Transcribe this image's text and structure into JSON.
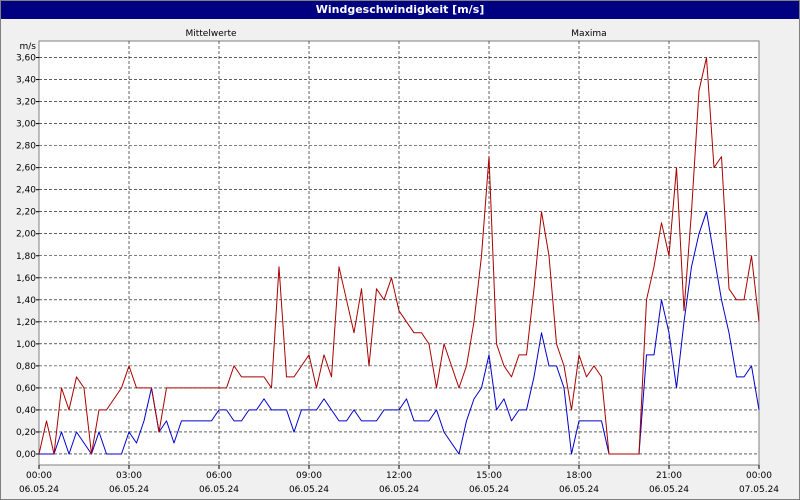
{
  "window": {
    "title": "Windgeschwindigkeit [m/s]"
  },
  "colors": {
    "mean": "#0000cc",
    "max": "#aa0000",
    "grid": "#000000",
    "background": "#ffffff"
  },
  "chart_data": {
    "type": "line",
    "title": "Windgeschwindigkeit [m/s]",
    "ylabel": "m/s",
    "ylim": [
      -0.1,
      3.75
    ],
    "xlim_hours": [
      0,
      24
    ],
    "grid": true,
    "legend": [
      {
        "name": "Mittelwerte",
        "position": "top-left"
      },
      {
        "name": "Maxima",
        "position": "top-right"
      }
    ],
    "y_ticks": [
      "0,00",
      "0,20",
      "0,40",
      "0,60",
      "0,80",
      "1,00",
      "1,20",
      "1,40",
      "1,60",
      "1,80",
      "2,00",
      "2,20",
      "2,40",
      "2,60",
      "2,80",
      "3,00",
      "3,20",
      "3,40",
      "3,60"
    ],
    "x_ticks": [
      {
        "time": "00:00",
        "date": "06.05.24"
      },
      {
        "time": "03:00",
        "date": "06.05.24"
      },
      {
        "time": "06:00",
        "date": "06.05.24"
      },
      {
        "time": "09:00",
        "date": "06.05.24"
      },
      {
        "time": "12:00",
        "date": "06.05.24"
      },
      {
        "time": "15:00",
        "date": "06.05.24"
      },
      {
        "time": "18:00",
        "date": "06.05.24"
      },
      {
        "time": "21:00",
        "date": "06.05.24"
      },
      {
        "time": "00:00",
        "date": "07.05.24"
      }
    ],
    "series": [
      {
        "name": "Mittelwerte",
        "color": "#0000cc",
        "points": [
          [
            0,
            0
          ],
          [
            0.25,
            0
          ],
          [
            0.5,
            0
          ],
          [
            0.75,
            0.2
          ],
          [
            1,
            0
          ],
          [
            1.25,
            0.2
          ],
          [
            1.5,
            0.1
          ],
          [
            1.75,
            0
          ],
          [
            2,
            0.2
          ],
          [
            2.25,
            0
          ],
          [
            2.5,
            0
          ],
          [
            2.75,
            0
          ],
          [
            3,
            0.2
          ],
          [
            3.25,
            0.1
          ],
          [
            3.5,
            0.3
          ],
          [
            3.75,
            0.6
          ],
          [
            4,
            0.2
          ],
          [
            4.25,
            0.3
          ],
          [
            4.5,
            0.1
          ],
          [
            4.75,
            0.3
          ],
          [
            5,
            0.3
          ],
          [
            5.25,
            0.3
          ],
          [
            5.5,
            0.3
          ],
          [
            5.75,
            0.3
          ],
          [
            6,
            0.4
          ],
          [
            6.25,
            0.4
          ],
          [
            6.5,
            0.3
          ],
          [
            6.75,
            0.3
          ],
          [
            7,
            0.4
          ],
          [
            7.25,
            0.4
          ],
          [
            7.5,
            0.5
          ],
          [
            7.75,
            0.4
          ],
          [
            8,
            0.4
          ],
          [
            8.25,
            0.4
          ],
          [
            8.5,
            0.2
          ],
          [
            8.75,
            0.4
          ],
          [
            9,
            0.4
          ],
          [
            9.25,
            0.4
          ],
          [
            9.5,
            0.5
          ],
          [
            9.75,
            0.4
          ],
          [
            10,
            0.3
          ],
          [
            10.25,
            0.3
          ],
          [
            10.5,
            0.4
          ],
          [
            10.75,
            0.3
          ],
          [
            11,
            0.3
          ],
          [
            11.25,
            0.3
          ],
          [
            11.5,
            0.4
          ],
          [
            11.75,
            0.4
          ],
          [
            12,
            0.4
          ],
          [
            12.25,
            0.5
          ],
          [
            12.5,
            0.3
          ],
          [
            12.75,
            0.3
          ],
          [
            13,
            0.3
          ],
          [
            13.25,
            0.4
          ],
          [
            13.5,
            0.2
          ],
          [
            13.75,
            0.1
          ],
          [
            14,
            0
          ],
          [
            14.25,
            0.3
          ],
          [
            14.5,
            0.5
          ],
          [
            14.75,
            0.6
          ],
          [
            15,
            0.9
          ],
          [
            15.25,
            0.4
          ],
          [
            15.5,
            0.5
          ],
          [
            15.75,
            0.3
          ],
          [
            16,
            0.4
          ],
          [
            16.25,
            0.4
          ],
          [
            16.5,
            0.7
          ],
          [
            16.75,
            1.1
          ],
          [
            17,
            0.8
          ],
          [
            17.25,
            0.8
          ],
          [
            17.5,
            0.6
          ],
          [
            17.75,
            0
          ],
          [
            18,
            0.3
          ],
          [
            18.25,
            0.3
          ],
          [
            18.5,
            0.3
          ],
          [
            18.75,
            0.3
          ],
          [
            19,
            0
          ],
          [
            19.25,
            0
          ],
          [
            19.5,
            0
          ],
          [
            19.75,
            0
          ],
          [
            20,
            0
          ],
          [
            20.25,
            0.9
          ],
          [
            20.5,
            0.9
          ],
          [
            20.75,
            1.4
          ],
          [
            21,
            1.1
          ],
          [
            21.25,
            0.6
          ],
          [
            21.5,
            1.2
          ],
          [
            21.75,
            1.7
          ],
          [
            22,
            2
          ],
          [
            22.25,
            2.2
          ],
          [
            22.5,
            1.8
          ],
          [
            22.75,
            1.4
          ],
          [
            23,
            1.1
          ],
          [
            23.25,
            0.7
          ],
          [
            23.5,
            0.7
          ],
          [
            23.75,
            0.8
          ],
          [
            24,
            0.4
          ]
        ]
      },
      {
        "name": "Maxima",
        "color": "#aa0000",
        "points": [
          [
            0,
            0
          ],
          [
            0.25,
            0.3
          ],
          [
            0.5,
            0
          ],
          [
            0.75,
            0.6
          ],
          [
            1,
            0.4
          ],
          [
            1.25,
            0.7
          ],
          [
            1.5,
            0.6
          ],
          [
            1.75,
            0
          ],
          [
            2,
            0.4
          ],
          [
            2.25,
            0.4
          ],
          [
            2.5,
            0.5
          ],
          [
            2.75,
            0.6
          ],
          [
            3,
            0.8
          ],
          [
            3.25,
            0.6
          ],
          [
            3.5,
            0.6
          ],
          [
            3.75,
            0.6
          ],
          [
            4,
            0.2
          ],
          [
            4.25,
            0.6
          ],
          [
            4.5,
            0.6
          ],
          [
            4.75,
            0.6
          ],
          [
            5,
            0.6
          ],
          [
            5.25,
            0.6
          ],
          [
            5.5,
            0.6
          ],
          [
            5.75,
            0.6
          ],
          [
            6,
            0.6
          ],
          [
            6.25,
            0.6
          ],
          [
            6.5,
            0.8
          ],
          [
            6.75,
            0.7
          ],
          [
            7,
            0.7
          ],
          [
            7.25,
            0.7
          ],
          [
            7.5,
            0.7
          ],
          [
            7.75,
            0.6
          ],
          [
            8,
            1.7
          ],
          [
            8.25,
            0.7
          ],
          [
            8.5,
            0.7
          ],
          [
            8.75,
            0.8
          ],
          [
            9,
            0.9
          ],
          [
            9.25,
            0.6
          ],
          [
            9.5,
            0.9
          ],
          [
            9.75,
            0.7
          ],
          [
            10,
            1.7
          ],
          [
            10.25,
            1.4
          ],
          [
            10.5,
            1.1
          ],
          [
            10.75,
            1.5
          ],
          [
            11,
            0.8
          ],
          [
            11.25,
            1.5
          ],
          [
            11.5,
            1.4
          ],
          [
            11.75,
            1.6
          ],
          [
            12,
            1.3
          ],
          [
            12.25,
            1.2
          ],
          [
            12.5,
            1.1
          ],
          [
            12.75,
            1.1
          ],
          [
            13,
            1.0
          ],
          [
            13.25,
            0.6
          ],
          [
            13.5,
            1.0
          ],
          [
            13.75,
            0.8
          ],
          [
            14,
            0.6
          ],
          [
            14.25,
            0.8
          ],
          [
            14.5,
            1.2
          ],
          [
            14.75,
            1.8
          ],
          [
            15,
            2.7
          ],
          [
            15.25,
            1.0
          ],
          [
            15.5,
            0.8
          ],
          [
            15.75,
            0.7
          ],
          [
            16,
            0.9
          ],
          [
            16.25,
            0.9
          ],
          [
            16.5,
            1.5
          ],
          [
            16.75,
            2.2
          ],
          [
            17,
            1.8
          ],
          [
            17.25,
            1.0
          ],
          [
            17.5,
            0.8
          ],
          [
            17.75,
            0.4
          ],
          [
            18,
            0.9
          ],
          [
            18.25,
            0.7
          ],
          [
            18.5,
            0.8
          ],
          [
            18.75,
            0.7
          ],
          [
            19,
            0
          ],
          [
            19.25,
            0
          ],
          [
            19.5,
            0
          ],
          [
            19.75,
            0
          ],
          [
            20,
            0
          ],
          [
            20.25,
            1.4
          ],
          [
            20.5,
            1.7
          ],
          [
            20.75,
            2.1
          ],
          [
            21,
            1.8
          ],
          [
            21.25,
            2.6
          ],
          [
            21.5,
            1.3
          ],
          [
            21.75,
            2.2
          ],
          [
            22,
            3.3
          ],
          [
            22.25,
            3.6
          ],
          [
            22.5,
            2.6
          ],
          [
            22.75,
            2.7
          ],
          [
            23,
            1.5
          ],
          [
            23.25,
            1.4
          ],
          [
            23.5,
            1.4
          ],
          [
            23.75,
            1.8
          ],
          [
            24,
            1.2
          ]
        ]
      }
    ]
  }
}
